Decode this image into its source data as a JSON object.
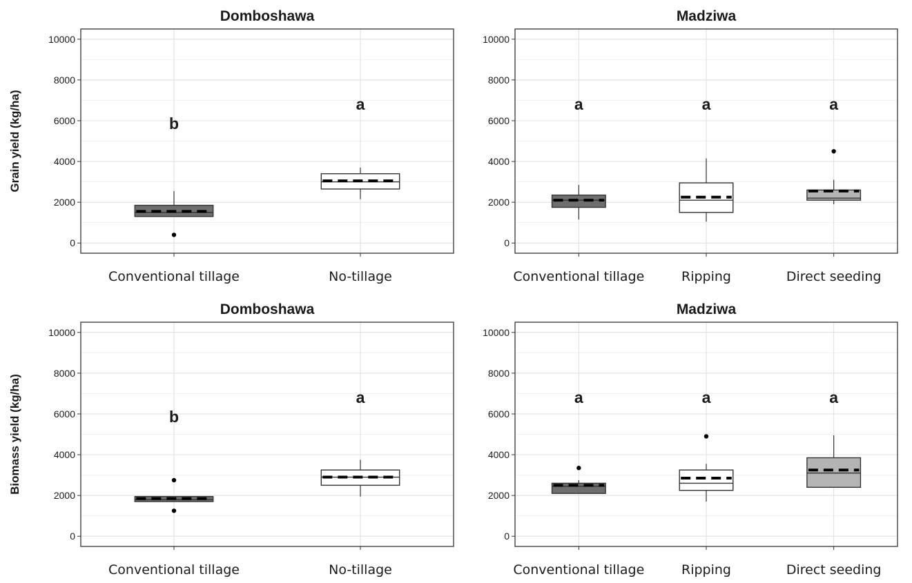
{
  "chart_data": [
    {
      "type": "box",
      "title": "Domboshawa",
      "ylabel": "Grain yield (kg/ha)",
      "ylim": [
        -500,
        10500
      ],
      "yticks": [
        0,
        2000,
        4000,
        6000,
        8000,
        10000
      ],
      "grid": true,
      "categories": [
        "Conventional tillage",
        "No-tillage"
      ],
      "boxes": [
        {
          "fill": "#6e6e6e",
          "q1": 1300,
          "median": 1500,
          "q3": 1850,
          "whisker_low": 1300,
          "whisker_high": 2550,
          "mean": 1550,
          "outliers": [
            400
          ],
          "letter": "b"
        },
        {
          "fill": "#ffffff",
          "q1": 2650,
          "median": 3000,
          "q3": 3400,
          "whisker_low": 2150,
          "whisker_high": 3700,
          "mean": 3050,
          "outliers": [],
          "letter": "a"
        }
      ]
    },
    {
      "type": "box",
      "title": "Madziwa",
      "ylabel": "",
      "ylim": [
        -500,
        10500
      ],
      "yticks": [
        0,
        2000,
        4000,
        6000,
        8000,
        10000
      ],
      "grid": true,
      "categories": [
        "Conventional tillage",
        "Ripping",
        "Direct seeding"
      ],
      "boxes": [
        {
          "fill": "#6e6e6e",
          "q1": 1750,
          "median": 2100,
          "q3": 2350,
          "whisker_low": 1150,
          "whisker_high": 2850,
          "mean": 2100,
          "outliers": [],
          "letter": "a"
        },
        {
          "fill": "#ffffff",
          "q1": 1500,
          "median": 2100,
          "q3": 2950,
          "whisker_low": 1050,
          "whisker_high": 4150,
          "mean": 2250,
          "outliers": [],
          "letter": "a"
        },
        {
          "fill": "#b4b4b4",
          "q1": 2100,
          "median": 2200,
          "q3": 2600,
          "whisker_low": 1900,
          "whisker_high": 3100,
          "mean": 2550,
          "outliers": [
            4500
          ],
          "letter": "a"
        }
      ]
    },
    {
      "type": "box",
      "title": "Domboshawa",
      "ylabel": "Biomass yield (kg/ha)",
      "ylim": [
        -500,
        10500
      ],
      "yticks": [
        0,
        2000,
        4000,
        6000,
        8000,
        10000
      ],
      "grid": true,
      "categories": [
        "Conventional tillage",
        "No-tillage"
      ],
      "boxes": [
        {
          "fill": "#6e6e6e",
          "q1": 1700,
          "median": 1800,
          "q3": 1950,
          "whisker_low": 1700,
          "whisker_high": 1950,
          "mean": 1850,
          "outliers": [
            2750,
            1250
          ],
          "letter": "b"
        },
        {
          "fill": "#ffffff",
          "q1": 2500,
          "median": 2900,
          "q3": 3250,
          "whisker_low": 1950,
          "whisker_high": 3750,
          "mean": 2900,
          "outliers": [],
          "letter": "a"
        }
      ]
    },
    {
      "type": "box",
      "title": "Madziwa",
      "ylabel": "",
      "ylim": [
        -500,
        10500
      ],
      "yticks": [
        0,
        2000,
        4000,
        6000,
        8000,
        10000
      ],
      "grid": true,
      "categories": [
        "Conventional tillage",
        "Ripping",
        "Direct seeding"
      ],
      "boxes": [
        {
          "fill": "#6e6e6e",
          "q1": 2100,
          "median": 2450,
          "q3": 2600,
          "whisker_low": 2100,
          "whisker_high": 2750,
          "mean": 2500,
          "outliers": [
            3350
          ],
          "letter": "a"
        },
        {
          "fill": "#ffffff",
          "q1": 2250,
          "median": 2600,
          "q3": 3250,
          "whisker_low": 1700,
          "whisker_high": 3550,
          "mean": 2850,
          "outliers": [
            4900
          ],
          "letter": "a"
        },
        {
          "fill": "#b4b4b4",
          "q1": 2400,
          "median": 3100,
          "q3": 3850,
          "whisker_low": 2400,
          "whisker_high": 4950,
          "mean": 3250,
          "outliers": [],
          "letter": "a"
        }
      ]
    }
  ]
}
